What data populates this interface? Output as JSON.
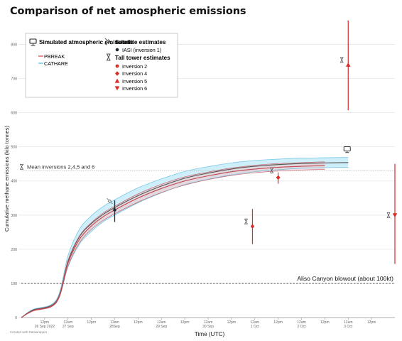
{
  "title": "Comparison of net amospheric emissions",
  "credit": "Created with Datawrapper",
  "colors": {
    "pbreak": "#c0474f",
    "cathare": "#4fb6e0",
    "cathare_band": "#c9ecf8",
    "ref_line": "#333333",
    "mean_line": "#bbbbbb",
    "grid": "#e6e6e6",
    "accent_red": "#d62d27",
    "iasi": "#1f2a36"
  },
  "chart_data": {
    "type": "line",
    "title": "Comparison of net amospheric emissions",
    "xlabel": "Time (UTC)",
    "ylabel": "Cumulative methane emissions (kilo tonnes)",
    "ylim": [
      0,
      880
    ],
    "xlim": [
      0,
      16
    ],
    "x_unit_note": "half-day steps from 26 Sep 2022 00:00 UTC",
    "yticks": [
      0,
      100,
      200,
      300,
      400,
      500,
      600,
      700,
      800
    ],
    "xticks": [
      {
        "x": 1,
        "label": "12pm",
        "sub": "26 Sep 2022"
      },
      {
        "x": 2,
        "label": "12am",
        "sub": "27 Sep"
      },
      {
        "x": 3,
        "label": "12pm",
        "sub": ""
      },
      {
        "x": 4,
        "label": "12am",
        "sub": "28Sep"
      },
      {
        "x": 5,
        "label": "12pm",
        "sub": ""
      },
      {
        "x": 6,
        "label": "12am",
        "sub": "29 Sep"
      },
      {
        "x": 7,
        "label": "12pm",
        "sub": ""
      },
      {
        "x": 8,
        "label": "12am",
        "sub": "30 Sep"
      },
      {
        "x": 9,
        "label": "12pm",
        "sub": ""
      },
      {
        "x": 10,
        "label": "12am",
        "sub": "1 Oct"
      },
      {
        "x": 11,
        "label": "12pm",
        "sub": ""
      },
      {
        "x": 12,
        "label": "12am",
        "sub": "2 Oct"
      },
      {
        "x": 13,
        "label": "12pm",
        "sub": ""
      },
      {
        "x": 14,
        "label": "12am",
        "sub": "3 Oct"
      },
      {
        "x": 15,
        "label": "12pm",
        "sub": ""
      }
    ],
    "grid": true,
    "series": [
      {
        "name": "PBREAK",
        "x": [
          0,
          0.5,
          1.5,
          2,
          2.5,
          3,
          3.5,
          4,
          5,
          6,
          7,
          8,
          9,
          10,
          11,
          12,
          13
        ],
        "values": [
          0,
          20,
          45,
          160,
          230,
          268,
          295,
          315,
          350,
          378,
          400,
          415,
          427,
          435,
          440,
          443,
          445
        ],
        "lower": [
          0,
          19,
          43,
          152,
          220,
          258,
          284,
          304,
          338,
          366,
          388,
          404,
          416,
          424,
          429,
          432,
          434
        ],
        "upper": [
          0,
          21,
          47,
          168,
          240,
          278,
          306,
          326,
          362,
          390,
          412,
          426,
          438,
          446,
          451,
          454,
          456
        ]
      },
      {
        "name": "CATHARE",
        "x": [
          0,
          0.5,
          1.5,
          2,
          2.5,
          3,
          3.5,
          4,
          5,
          6,
          7,
          8,
          9,
          10,
          11,
          12,
          13,
          14
        ],
        "values": [
          0,
          22,
          48,
          165,
          238,
          275,
          302,
          322,
          357,
          385,
          408,
          423,
          435,
          443,
          448,
          451,
          453,
          454
        ],
        "lower": [
          0,
          20,
          44,
          148,
          216,
          252,
          280,
          300,
          336,
          365,
          389,
          405,
          418,
          427,
          433,
          437,
          439,
          440
        ],
        "upper": [
          0,
          24,
          52,
          182,
          260,
          298,
          325,
          345,
          380,
          406,
          428,
          442,
          453,
          460,
          464,
          467,
          468,
          469
        ]
      }
    ],
    "reference_lines": [
      {
        "y": 100,
        "label": "Aliso Canyon blowout (about 100kt)"
      },
      {
        "y": 430,
        "label": "Mean inversions 2,4,5 and 6"
      }
    ],
    "satellite_estimates": [
      {
        "name": "IASI (inversion 1)",
        "x": 4,
        "y": 315,
        "low": 280,
        "high": 343
      }
    ],
    "tower_estimates": [
      {
        "name": "Inversion 2",
        "x": 9.9,
        "y": 267,
        "low": 215,
        "high": 318,
        "marker": "circle"
      },
      {
        "name": "Inversion 4",
        "x": 11.0,
        "y": 410,
        "low": 392,
        "high": 425,
        "marker": "diamond"
      },
      {
        "name": "Inversion 5",
        "x": 14.0,
        "y": 740,
        "low": 607,
        "high": 870,
        "marker": "triangle-up"
      },
      {
        "name": "Inversion 6",
        "x": 16.0,
        "y": 300,
        "low": 157,
        "high": 450,
        "marker": "triangle-down"
      }
    ]
  },
  "legend": {
    "simulated_heading": "Simulated atmospheric emissions",
    "pbreak_label": "PBREAK",
    "cathare_label": "CATHARE",
    "satellite_heading": "Satellite estimates",
    "iasi_label": "IASI (inversion 1)",
    "tower_heading": "Tall tower estimates",
    "inv2_label": "Inversion 2",
    "inv4_label": "Inversion 4",
    "inv5_label": "Inversion 5",
    "inv6_label": "Inversion 6"
  }
}
